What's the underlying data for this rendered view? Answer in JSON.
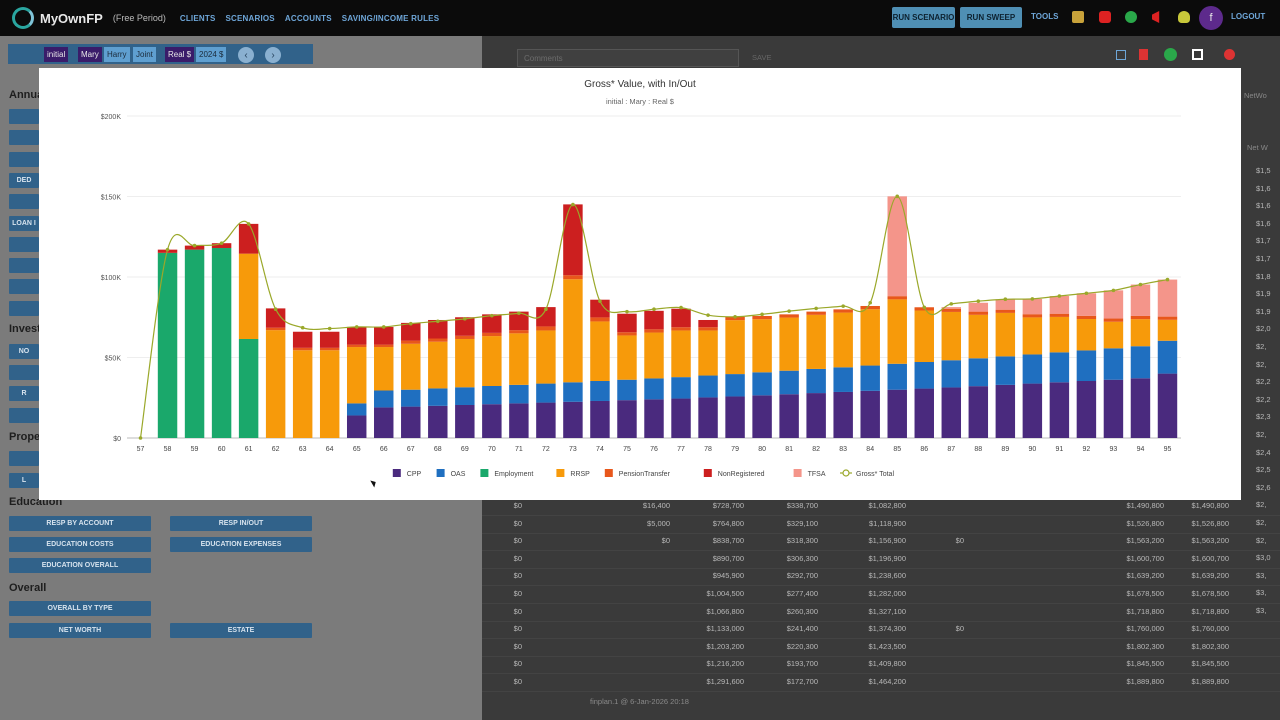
{
  "header": {
    "app_name": "MyOwnFP",
    "plan_status": "(Free Period)",
    "nav": [
      "CLIENTS",
      "SCENARIOS",
      "ACCOUNTS",
      "SAVING/INCOME RULES"
    ],
    "run_scenario": "RUN SCENARIO",
    "run_sweep": "RUN SWEEP",
    "tools": "TOOLS",
    "avatar_letter": "f",
    "logout": "LOGOUT",
    "icons": [
      "book-icon",
      "youtube-icon",
      "help-icon",
      "megaphone-icon",
      "lightbulb-icon"
    ]
  },
  "toolbar": {
    "scenario": "initial",
    "people": [
      "Mary",
      "Harry",
      "Joint"
    ],
    "selected_person": "Mary",
    "real_label": "Real $",
    "year_dollars": "2024 $",
    "prev": "‹",
    "next": "›"
  },
  "left_panel": {
    "sections": [
      {
        "title": "Annual",
        "buttons": [
          "",
          "",
          "",
          "DED",
          "",
          "LOAN I",
          "",
          "",
          "",
          ""
        ]
      },
      {
        "title": "Invest",
        "buttons": [
          "NO",
          "",
          "R",
          ""
        ]
      },
      {
        "title": "Prope",
        "buttons": [
          "",
          "L"
        ]
      },
      {
        "title": "Education",
        "buttons": [
          "RESP BY ACCOUNT",
          "RESP IN/OUT",
          "EDUCATION COSTS",
          "EDUCATION EXPENSES",
          "EDUCATION OVERALL"
        ]
      },
      {
        "title": "Overall",
        "buttons": [
          "OVERALL BY TYPE",
          "NET WORTH",
          "ESTATE"
        ]
      }
    ]
  },
  "right_panel": {
    "comments_placeholder": "Comments",
    "save_label": "SAVE",
    "header_labels": [
      "NetWo",
      "Net W"
    ],
    "footnote": "finplan.1 @ 6-Jan-2026 20:18",
    "rows": [
      [
        "$0",
        "$16,400",
        "$728,700",
        "$338,700",
        "$1,082,800",
        "",
        "$1,490,800",
        "$1,490,800"
      ],
      [
        "$0",
        "$5,000",
        "$764,800",
        "$329,100",
        "$1,118,900",
        "",
        "$1,526,800",
        "$1,526,800"
      ],
      [
        "$0",
        "$0",
        "$838,700",
        "$318,300",
        "$1,156,900",
        "$0",
        "$1,563,200",
        "$1,563,200"
      ],
      [
        "$0",
        "",
        "$890,700",
        "$306,300",
        "$1,196,900",
        "",
        "$1,600,700",
        "$1,600,700"
      ],
      [
        "$0",
        "",
        "$945,900",
        "$292,700",
        "$1,238,600",
        "",
        "$1,639,200",
        "$1,639,200"
      ],
      [
        "$0",
        "",
        "$1,004,500",
        "$277,400",
        "$1,282,000",
        "",
        "$1,678,500",
        "$1,678,500"
      ],
      [
        "$0",
        "",
        "$1,066,800",
        "$260,300",
        "$1,327,100",
        "",
        "$1,718,800",
        "$1,718,800"
      ],
      [
        "$0",
        "",
        "$1,133,000",
        "$241,400",
        "$1,374,300",
        "$0",
        "$1,760,000",
        "$1,760,000"
      ],
      [
        "$0",
        "",
        "$1,203,200",
        "$220,300",
        "$1,423,500",
        "",
        "$1,802,300",
        "$1,802,300"
      ],
      [
        "$0",
        "",
        "$1,216,200",
        "$193,700",
        "$1,409,800",
        "",
        "$1,845,500",
        "$1,845,500"
      ],
      [
        "$0",
        "",
        "$1,291,600",
        "$172,700",
        "$1,464,200",
        "",
        "$1,889,800",
        "$1,889,800"
      ]
    ],
    "right_edge_values": [
      "$1,5",
      "$1,6",
      "$1,6",
      "$1,6",
      "$1,7",
      "$1,7",
      "$1,8",
      "$1,9",
      "$1,9",
      "$2,0",
      "$2,",
      "$2,",
      "$2,2",
      "$2,2",
      "$2,3",
      "$2,",
      "$2,4",
      "$2,5",
      "$2,6",
      "$2,",
      "$2,",
      "$2,",
      "$3,0",
      "$3,",
      "$3,",
      "$3,"
    ]
  },
  "modal": {
    "title": "Gross* Value, with In/Out",
    "subtitle": "initial : Mary : Real $"
  },
  "colors": {
    "CPP": "#4a2a7e",
    "OAS": "#1f6fc0",
    "Employment": "#1aa86b",
    "RRSP": "#f79a0a",
    "PensionTransfer": "#e8571b",
    "NonRegistered": "#cc1f1f",
    "TFSA": "#f4958a",
    "Gross* Total": "#9aa82a"
  },
  "chart_data": {
    "type": "bar",
    "stacked": true,
    "categories": [
      "57",
      "58",
      "59",
      "60",
      "61",
      "62",
      "63",
      "64",
      "65",
      "66",
      "67",
      "68",
      "69",
      "70",
      "71",
      "72",
      "73",
      "74",
      "75",
      "76",
      "77",
      "78",
      "79",
      "80",
      "81",
      "82",
      "83",
      "84",
      "85",
      "86",
      "87",
      "88",
      "89",
      "90",
      "91",
      "92",
      "93",
      "94",
      "95"
    ],
    "y_ticks": [
      "$0",
      "$50K",
      "$100K",
      "$150K",
      "$200K"
    ],
    "ylim": [
      0,
      200000
    ],
    "grid": true,
    "legend_position": "bottom",
    "series": [
      {
        "name": "CPP",
        "values": [
          0,
          0,
          0,
          0,
          0,
          0,
          0,
          0,
          14000,
          19000,
          19500,
          20000,
          20500,
          21000,
          21500,
          22000,
          22500,
          23000,
          23500,
          24000,
          24500,
          25200,
          25800,
          26500,
          27200,
          27900,
          28600,
          29300,
          30000,
          30700,
          31400,
          32200,
          33000,
          33800,
          34600,
          35400,
          36200,
          37100,
          40000
        ]
      },
      {
        "name": "OAS",
        "values": [
          0,
          0,
          0,
          0,
          0,
          0,
          0,
          0,
          7500,
          10500,
          10500,
          10800,
          11000,
          11300,
          11500,
          11800,
          12100,
          12400,
          12700,
          13000,
          13300,
          13600,
          13900,
          14300,
          14600,
          15000,
          15300,
          15700,
          16100,
          16500,
          16900,
          17300,
          17700,
          18100,
          18600,
          19000,
          19500,
          19900,
          20400
        ]
      },
      {
        "name": "Employment",
        "values": [
          0,
          115000,
          117000,
          118000,
          61500,
          0,
          0,
          0,
          0,
          0,
          0,
          0,
          0,
          0,
          0,
          0,
          0,
          0,
          0,
          0,
          0,
          0,
          0,
          0,
          0,
          0,
          0,
          0,
          0,
          0,
          0,
          0,
          0,
          0,
          0,
          0,
          0,
          0,
          0
        ]
      },
      {
        "name": "RRSP",
        "values": [
          0,
          0,
          0,
          0,
          53000,
          67000,
          54500,
          54500,
          35000,
          27000,
          28500,
          29000,
          30000,
          31000,
          32000,
          33000,
          64000,
          37000,
          27500,
          28500,
          29000,
          28000,
          33500,
          33000,
          33000,
          33600,
          34000,
          35000,
          40000,
          32000,
          30000,
          27000,
          27000,
          23000,
          22000,
          19500,
          16500,
          16800,
          13000
        ]
      },
      {
        "name": "PensionTransfer",
        "values": [
          0,
          0,
          0,
          0,
          0,
          1500,
          1500,
          1500,
          1500,
          1500,
          2000,
          2000,
          2000,
          2000,
          2000,
          2500,
          2500,
          2500,
          2000,
          2000,
          2000,
          2000,
          2000,
          2000,
          2000,
          2000,
          2000,
          2000,
          2000,
          2000,
          2000,
          2000,
          2000,
          2000,
          2000,
          2000,
          2000,
          2000,
          2000
        ]
      },
      {
        "name": "NonRegistered",
        "values": [
          0,
          2000,
          2500,
          3000,
          18500,
          12000,
          10000,
          10000,
          11000,
          11000,
          11000,
          11500,
          11500,
          11500,
          11500,
          12000,
          44000,
          11000,
          11500,
          11500,
          11500,
          4500,
          0,
          0,
          0,
          0,
          0,
          0,
          0,
          0,
          0,
          0,
          0,
          0,
          0,
          0,
          0,
          0,
          0
        ]
      },
      {
        "name": "TFSA",
        "values": [
          0,
          0,
          0,
          0,
          0,
          0,
          0,
          0,
          0,
          0,
          0,
          0,
          0,
          0,
          0,
          0,
          0,
          0,
          0,
          0,
          0,
          0,
          0,
          0,
          0,
          0,
          0,
          0,
          62000,
          0,
          1000,
          5500,
          6500,
          9500,
          11000,
          14000,
          17500,
          19500,
          23000
        ]
      }
    ],
    "line": {
      "name": "Gross* Total",
      "values": [
        0,
        117000,
        119500,
        121000,
        133000,
        80000,
        68500,
        68000,
        69000,
        69000,
        71000,
        72500,
        74000,
        76000,
        77500,
        80000,
        145000,
        85000,
        78500,
        80000,
        81000,
        76300,
        75300,
        76800,
        78800,
        80500,
        81900,
        84000,
        150100,
        81200,
        83300,
        85000,
        86200,
        86400,
        88200,
        89900,
        91700,
        95300,
        98400
      ]
    }
  }
}
